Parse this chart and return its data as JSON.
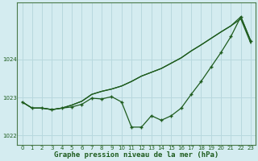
{
  "title": "Graphe pression niveau de la mer (hPa)",
  "background_color": "#d4ecf0",
  "grid_color": "#b8d8de",
  "line_color": "#1e5c1e",
  "xlim": [
    -0.5,
    23.5
  ],
  "ylim": [
    1021.75,
    1025.5
  ],
  "yticks": [
    1022,
    1023,
    1024
  ],
  "xticks": [
    0,
    1,
    2,
    3,
    4,
    5,
    6,
    7,
    8,
    9,
    10,
    11,
    12,
    13,
    14,
    15,
    16,
    17,
    18,
    19,
    20,
    21,
    22,
    23
  ],
  "main_series": [
    1022.88,
    1022.72,
    1022.72,
    1022.68,
    1022.72,
    1022.75,
    1022.82,
    1022.98,
    1022.96,
    1023.02,
    1022.88,
    1022.22,
    1022.22,
    1022.52,
    1022.4,
    1022.52,
    1022.72,
    1023.08,
    1023.42,
    1023.8,
    1024.18,
    1024.6,
    1025.12,
    1024.48
  ],
  "line2_series": [
    1022.88,
    1022.72,
    1022.72,
    1022.68,
    1022.72,
    1022.8,
    1022.9,
    1023.08,
    1023.16,
    1023.22,
    1023.3,
    1023.42,
    1023.56,
    1023.66,
    1023.76,
    1023.9,
    1024.04,
    1024.22,
    1024.38,
    1024.55,
    1024.72,
    1024.88,
    1025.12,
    1024.48
  ],
  "line3_series": [
    1022.88,
    1022.72,
    1022.72,
    1022.68,
    1022.72,
    1022.8,
    1022.9,
    1023.08,
    1023.16,
    1023.22,
    1023.3,
    1023.42,
    1023.56,
    1023.66,
    1023.76,
    1023.9,
    1024.04,
    1024.22,
    1024.38,
    1024.55,
    1024.72,
    1024.88,
    1025.06,
    1024.42
  ]
}
